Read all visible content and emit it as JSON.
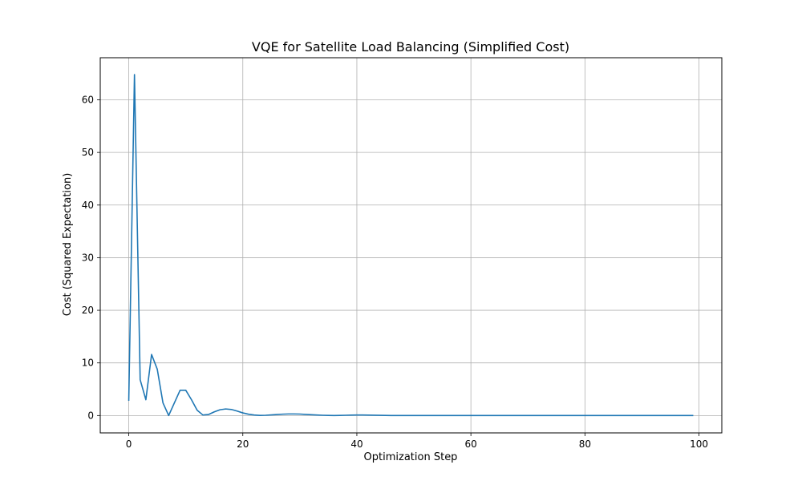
{
  "chart_data": {
    "type": "line",
    "title": "VQE for Satellite Load Balancing (Simplified Cost)",
    "xlabel": "Optimization Step",
    "ylabel": "Cost (Squared Expectation)",
    "xlim": [
      -5,
      104
    ],
    "ylim": [
      -3.3,
      68
    ],
    "xticks": [
      0,
      20,
      40,
      60,
      80,
      100
    ],
    "yticks": [
      0,
      10,
      20,
      30,
      40,
      50,
      60
    ],
    "grid": true,
    "legend": "none",
    "series": [
      {
        "color": "#1f77b4",
        "x": [
          0,
          1,
          2,
          3,
          4,
          5,
          6,
          7,
          8,
          9,
          10,
          11,
          12,
          13,
          14,
          15,
          16,
          17,
          18,
          19,
          20,
          21,
          22,
          23,
          24,
          25,
          26,
          27,
          28,
          29,
          30,
          31,
          32,
          33,
          34,
          35,
          36,
          37,
          38,
          39,
          40,
          41,
          42,
          43,
          44,
          45,
          46,
          47,
          48,
          49,
          50,
          51,
          52,
          53,
          54,
          55,
          56,
          57,
          58,
          59,
          60,
          61,
          62,
          63,
          64,
          65,
          66,
          67,
          68,
          69,
          70,
          71,
          72,
          73,
          74,
          75,
          76,
          77,
          78,
          79,
          80,
          81,
          82,
          83,
          84,
          85,
          86,
          87,
          88,
          89,
          90,
          91,
          92,
          93,
          94,
          95,
          96,
          97,
          98,
          99
        ],
        "y": [
          2.8,
          64.8,
          6.8,
          3.0,
          11.6,
          8.8,
          2.4,
          0.0,
          2.4,
          4.8,
          4.8,
          3.0,
          1.0,
          0.1,
          0.2,
          0.7,
          1.1,
          1.25,
          1.15,
          0.85,
          0.5,
          0.25,
          0.1,
          0.02,
          0.05,
          0.12,
          0.2,
          0.26,
          0.3,
          0.3,
          0.28,
          0.22,
          0.15,
          0.1,
          0.05,
          0.02,
          0.01,
          0.02,
          0.05,
          0.08,
          0.1,
          0.1,
          0.08,
          0.06,
          0.04,
          0.02,
          0.01,
          0.01,
          0.01,
          0.01,
          0.01,
          0.01,
          0.01,
          0.01,
          0.01,
          0.01,
          0.01,
          0.01,
          0.01,
          0.01,
          0.01,
          0.01,
          0.01,
          0.01,
          0.01,
          0.01,
          0.01,
          0.01,
          0.01,
          0.01,
          0.01,
          0.01,
          0.01,
          0.01,
          0.01,
          0.01,
          0.01,
          0.01,
          0.01,
          0.01,
          0.01,
          0.01,
          0.01,
          0.01,
          0.01,
          0.01,
          0.01,
          0.01,
          0.01,
          0.01,
          0.01,
          0.01,
          0.01,
          0.01,
          0.01,
          0.01,
          0.01,
          0.01,
          0.01,
          0.01
        ]
      }
    ]
  }
}
